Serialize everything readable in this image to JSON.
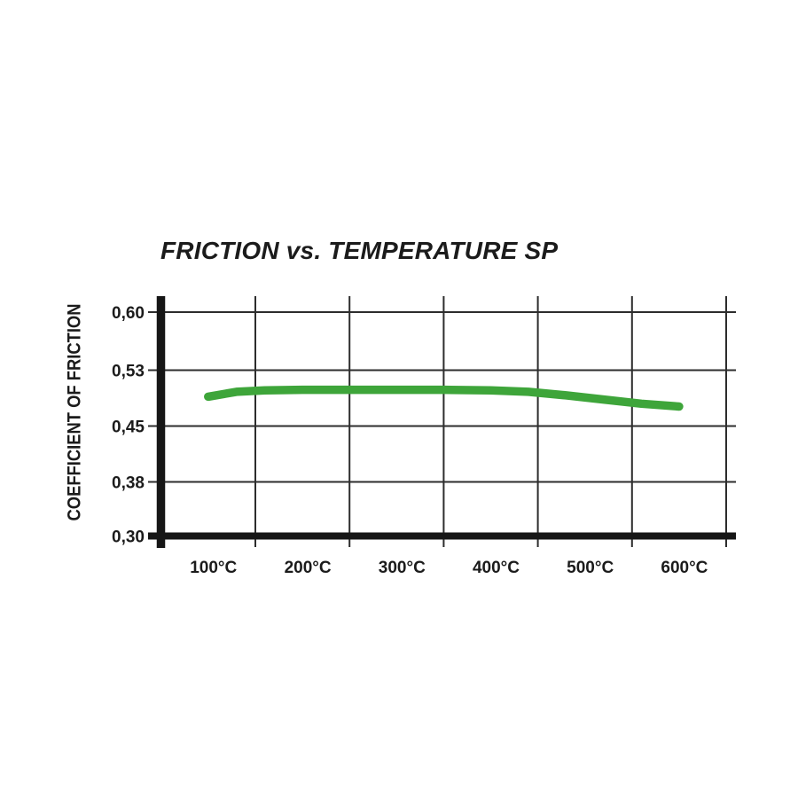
{
  "page": {
    "background": "#ffffff"
  },
  "chart_data": {
    "type": "line",
    "title": "FRICTION vs. TEMPERATURE SP",
    "xlabel": "",
    "ylabel": "COEFFICIENT OF FRICTION",
    "x_tick_labels": [
      "100°C",
      "200°C",
      "300°C",
      "400°C",
      "500°C",
      "600°C"
    ],
    "x_tick_values_degC": [
      100,
      200,
      300,
      400,
      500,
      600
    ],
    "y_tick_labels": [
      "0,60",
      "0,53",
      "0,45",
      "0,38",
      "0,30"
    ],
    "y_tick_values": [
      0.6,
      0.53,
      0.45,
      0.38,
      0.3
    ],
    "ylim": [
      0.3,
      0.6
    ],
    "grid": "on",
    "legend": "none",
    "axis_color": "#161616",
    "grid_color": "#2d2d2d",
    "text_color": "#1b1b1b",
    "series": [
      {
        "name": "SP",
        "color": "#3ea53a",
        "x_degC": [
          100,
          130,
          160,
          200,
          250,
          300,
          350,
          400,
          440,
          480,
          520,
          560,
          600
        ],
        "friction_coefficient": [
          0.492,
          0.499,
          0.501,
          0.502,
          0.502,
          0.502,
          0.502,
          0.501,
          0.499,
          0.494,
          0.488,
          0.482,
          0.478
        ]
      }
    ]
  }
}
